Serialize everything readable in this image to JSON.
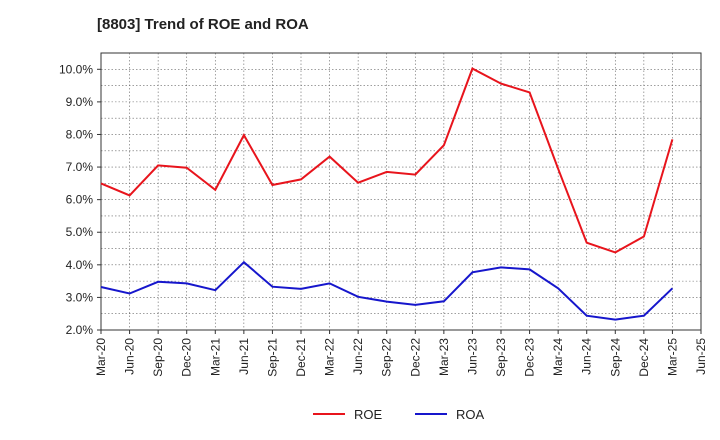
{
  "chart_data": {
    "type": "line",
    "title": "[8803]  Trend of ROE and ROA",
    "xlabel": "",
    "ylabel": "",
    "categories": [
      "Mar-20",
      "Jun-20",
      "Sep-20",
      "Dec-20",
      "Mar-21",
      "Jun-21",
      "Sep-21",
      "Dec-21",
      "Mar-22",
      "Jun-22",
      "Sep-22",
      "Dec-22",
      "Mar-23",
      "Jun-23",
      "Sep-23",
      "Dec-23",
      "Mar-24",
      "Jun-24",
      "Sep-24",
      "Dec-24",
      "Mar-25",
      "Jun-25"
    ],
    "ylim": [
      2.0,
      10.5
    ],
    "yticks": [
      2.0,
      3.0,
      4.0,
      5.0,
      6.0,
      7.0,
      8.0,
      9.0,
      10.0
    ],
    "ytick_labels": [
      "2.0%",
      "3.0%",
      "4.0%",
      "5.0%",
      "6.0%",
      "7.0%",
      "8.0%",
      "9.0%",
      "10.0%"
    ],
    "grid": true,
    "legend_position": "bottom",
    "series": [
      {
        "name": "ROE",
        "color": "#e8141c",
        "values": [
          6.5,
          6.13,
          7.05,
          6.98,
          6.3,
          7.98,
          6.45,
          6.62,
          7.32,
          6.52,
          6.85,
          6.77,
          7.67,
          10.02,
          9.56,
          9.29,
          6.95,
          4.68,
          4.38,
          4.87,
          7.85,
          null
        ]
      },
      {
        "name": "ROA",
        "color": "#1616cc",
        "values": [
          3.32,
          3.12,
          3.48,
          3.43,
          3.22,
          4.08,
          3.33,
          3.26,
          3.43,
          3.02,
          2.87,
          2.77,
          2.88,
          3.77,
          3.92,
          3.86,
          3.28,
          2.44,
          2.32,
          2.44,
          3.28,
          null
        ]
      }
    ]
  }
}
